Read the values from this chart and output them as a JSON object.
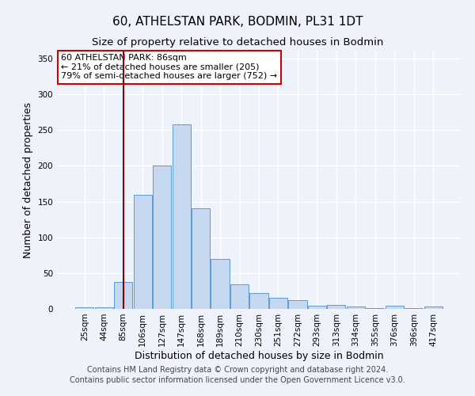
{
  "title": "60, ATHELSTAN PARK, BODMIN, PL31 1DT",
  "subtitle": "Size of property relative to detached houses in Bodmin",
  "xlabel": "Distribution of detached houses by size in Bodmin",
  "ylabel": "Number of detached properties",
  "categories": [
    "25sqm",
    "44sqm",
    "85sqm",
    "106sqm",
    "127sqm",
    "147sqm",
    "168sqm",
    "189sqm",
    "210sqm",
    "230sqm",
    "251sqm",
    "272sqm",
    "293sqm",
    "313sqm",
    "334sqm",
    "355sqm",
    "376sqm",
    "396sqm",
    "417sqm"
  ],
  "values": [
    2,
    2,
    38,
    160,
    200,
    258,
    141,
    70,
    34,
    22,
    16,
    12,
    4,
    5,
    3,
    1,
    4,
    1,
    3
  ],
  "bar_color": "#c5d8f0",
  "bar_edge_color": "#5b9bd5",
  "vline_index": 2,
  "vline_color": "#8b0000",
  "annotation_text": "60 ATHELSTAN PARK: 86sqm\n← 21% of detached houses are smaller (205)\n79% of semi-detached houses are larger (752) →",
  "annotation_box_color": "#ffffff",
  "annotation_box_edge_color": "#cc0000",
  "ylim": [
    0,
    360
  ],
  "yticks": [
    0,
    50,
    100,
    150,
    200,
    250,
    300,
    350
  ],
  "footer_line1": "Contains HM Land Registry data © Crown copyright and database right 2024.",
  "footer_line2": "Contains public sector information licensed under the Open Government Licence v3.0.",
  "background_color": "#eef3fb",
  "grid_color": "#ffffff",
  "title_fontsize": 11,
  "subtitle_fontsize": 9.5,
  "axis_label_fontsize": 9,
  "tick_fontsize": 7.5,
  "footer_fontsize": 7,
  "annotation_fontsize": 8
}
